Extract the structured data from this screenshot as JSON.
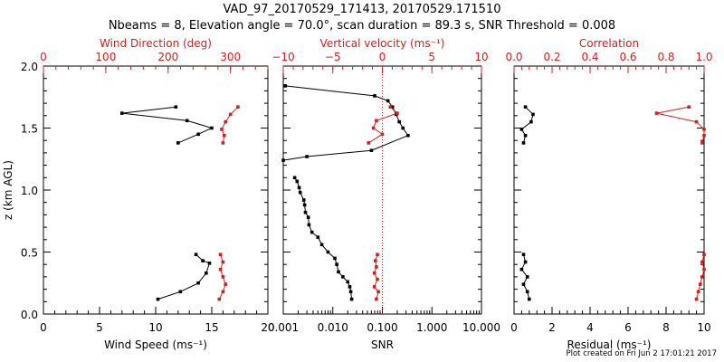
{
  "figure": {
    "title": "VAD_97_20170529_171413, 20170529.171510",
    "subtitle": "Nbeams = 8, Elevation angle = 70.0°, scan duration = 89.3 s, SNR Threshold = 0.008",
    "footer": "Plot created on Fri Jun  2 17:01:21 2017",
    "colors": {
      "primary": "#000000",
      "secondary": "#cc2222",
      "threshold_line": "#cc2222"
    }
  },
  "chart_data": [
    {
      "type": "line",
      "id": "wind",
      "ylabel": "z (km AGL)",
      "ylim": [
        0.0,
        2.0
      ],
      "y_ticks": [
        0.0,
        0.5,
        1.0,
        1.5,
        2.0
      ],
      "y_tick_labels": [
        "0.0",
        "0.5",
        "1.0",
        "1.5",
        "2.0"
      ],
      "bottom_axis": {
        "label": "Wind Speed (ms⁻¹)",
        "range": [
          0,
          20
        ],
        "scale": "linear",
        "ticks": [
          0,
          5,
          10,
          15,
          20
        ],
        "tick_labels": [
          "0",
          "5",
          "10",
          "15",
          "20"
        ]
      },
      "top_axis": {
        "label": "Wind Direction (deg)",
        "range": [
          0,
          360
        ],
        "scale": "linear",
        "ticks": [
          0,
          100,
          200,
          300
        ],
        "tick_labels": [
          "0",
          "100",
          "200",
          "300"
        ]
      },
      "series": [
        {
          "axis": "bottom",
          "color": "#000000",
          "segments": [
            [
              [
                10.2,
                0.12
              ],
              [
                12.2,
                0.18
              ],
              [
                13.8,
                0.25
              ],
              [
                14.5,
                0.33
              ],
              [
                14.8,
                0.41
              ],
              [
                14.2,
                0.43
              ],
              [
                13.6,
                0.48
              ]
            ],
            [
              [
                12.0,
                1.38
              ],
              [
                13.8,
                1.45
              ],
              [
                15.0,
                1.5
              ],
              [
                12.8,
                1.56
              ],
              [
                7.0,
                1.62
              ],
              [
                11.8,
                1.67
              ]
            ]
          ]
        },
        {
          "axis": "top",
          "color": "#cc2222",
          "segments": [
            [
              [
                282,
                0.12
              ],
              [
                288,
                0.18
              ],
              [
                292,
                0.24
              ],
              [
                288,
                0.3
              ],
              [
                284,
                0.36
              ],
              [
                288,
                0.42
              ],
              [
                284,
                0.48
              ]
            ],
            [
              [
                288,
                1.38
              ],
              [
                290,
                1.44
              ],
              [
                286,
                1.49
              ],
              [
                292,
                1.55
              ],
              [
                300,
                1.61
              ],
              [
                312,
                1.67
              ]
            ]
          ]
        }
      ]
    },
    {
      "type": "line",
      "id": "vertical",
      "ylim": [
        0.0,
        2.0
      ],
      "bottom_axis": {
        "label": "SNR",
        "range": [
          0.001,
          10.0
        ],
        "scale": "log",
        "ticks": [
          0.001,
          0.01,
          0.1,
          1.0,
          10.0
        ],
        "tick_labels": [
          "0.001",
          "0.010",
          "0.100",
          "1.000",
          "10.000"
        ]
      },
      "top_axis": {
        "label": "Vertical velocity (ms⁻¹)",
        "range": [
          -10,
          10
        ],
        "scale": "linear",
        "ticks": [
          -10,
          -5,
          0,
          5,
          10
        ],
        "tick_labels": [
          "−10",
          "−5",
          "0",
          "5",
          "10"
        ]
      },
      "threshold_line_at_top_value": 0,
      "series": [
        {
          "axis": "bottom",
          "color": "#000000",
          "segments": [
            [
              [
                0.024,
                0.12
              ],
              [
                0.023,
                0.18
              ],
              [
                0.022,
                0.22
              ],
              [
                0.02,
                0.26
              ],
              [
                0.016,
                0.3
              ],
              [
                0.013,
                0.34
              ],
              [
                0.012,
                0.4
              ],
              [
                0.011,
                0.45
              ],
              [
                0.008,
                0.5
              ],
              [
                0.006,
                0.56
              ],
              [
                0.005,
                0.62
              ],
              [
                0.0038,
                0.66
              ],
              [
                0.0033,
                0.72
              ],
              [
                0.0032,
                0.78
              ],
              [
                0.0028,
                0.82
              ],
              [
                0.0027,
                0.88
              ],
              [
                0.0026,
                0.92
              ],
              [
                0.0022,
                0.98
              ],
              [
                0.0021,
                1.02
              ],
              [
                0.0019,
                1.07
              ],
              [
                0.0017,
                1.1
              ]
            ],
            [
              [
                0.001,
                1.24
              ],
              [
                0.003,
                1.27
              ],
              [
                0.06,
                1.32
              ],
              [
                0.33,
                1.44
              ],
              [
                0.26,
                1.5
              ],
              [
                0.22,
                1.55
              ],
              [
                0.19,
                1.61
              ],
              [
                0.16,
                1.67
              ],
              [
                0.13,
                1.72
              ],
              [
                0.07,
                1.76
              ],
              [
                0.0011,
                1.84
              ]
            ]
          ]
        },
        {
          "axis": "top",
          "color": "#cc2222",
          "segments": [
            [
              [
                -0.6,
                0.12
              ],
              [
                -0.4,
                0.18
              ],
              [
                -0.8,
                0.22
              ],
              [
                -0.5,
                0.28
              ],
              [
                -0.8,
                0.33
              ],
              [
                -0.6,
                0.38
              ],
              [
                -0.7,
                0.43
              ],
              [
                -0.5,
                0.48
              ]
            ],
            [
              [
                -1.4,
                1.38
              ],
              [
                0.0,
                1.45
              ],
              [
                -0.9,
                1.5
              ],
              [
                -0.6,
                1.56
              ],
              [
                1.5,
                1.62
              ],
              [
                0.8,
                1.67
              ]
            ]
          ]
        }
      ]
    },
    {
      "type": "line",
      "id": "residual",
      "ylim": [
        0.0,
        2.0
      ],
      "bottom_axis": {
        "label": "Residual (ms⁻¹)",
        "range": [
          0,
          10
        ],
        "scale": "linear",
        "ticks": [
          0,
          2,
          4,
          6,
          8,
          10
        ],
        "tick_labels": [
          "0",
          "2",
          "4",
          "6",
          "8",
          "10"
        ]
      },
      "top_axis": {
        "label": "Correlation",
        "range": [
          0.0,
          1.0
        ],
        "scale": "linear",
        "ticks": [
          0.0,
          0.2,
          0.4,
          0.6,
          0.8,
          1.0
        ],
        "tick_labels": [
          "0.0",
          "0.2",
          "0.4",
          "0.6",
          "0.8",
          "1.0"
        ]
      },
      "series": [
        {
          "axis": "bottom",
          "color": "#000000",
          "segments": [
            [
              [
                0.8,
                0.12
              ],
              [
                0.7,
                0.18
              ],
              [
                0.5,
                0.24
              ],
              [
                0.7,
                0.3
              ],
              [
                0.4,
                0.36
              ],
              [
                0.6,
                0.42
              ],
              [
                0.5,
                0.48
              ]
            ],
            [
              [
                0.5,
                1.38
              ],
              [
                0.6,
                1.44
              ],
              [
                0.4,
                1.49
              ],
              [
                0.9,
                1.55
              ],
              [
                1.0,
                1.61
              ],
              [
                0.6,
                1.67
              ]
            ]
          ]
        },
        {
          "axis": "top",
          "color": "#cc2222",
          "segments": [
            [
              [
                0.96,
                0.12
              ],
              [
                0.97,
                0.18
              ],
              [
                0.98,
                0.24
              ],
              [
                0.99,
                0.3
              ],
              [
                1.0,
                0.36
              ],
              [
                0.99,
                0.42
              ],
              [
                1.0,
                0.48
              ]
            ],
            [
              [
                0.99,
                1.38
              ],
              [
                1.0,
                1.44
              ],
              [
                1.0,
                1.49
              ],
              [
                0.96,
                1.55
              ],
              [
                0.75,
                1.62
              ],
              [
                0.92,
                1.67
              ]
            ]
          ]
        }
      ]
    }
  ]
}
